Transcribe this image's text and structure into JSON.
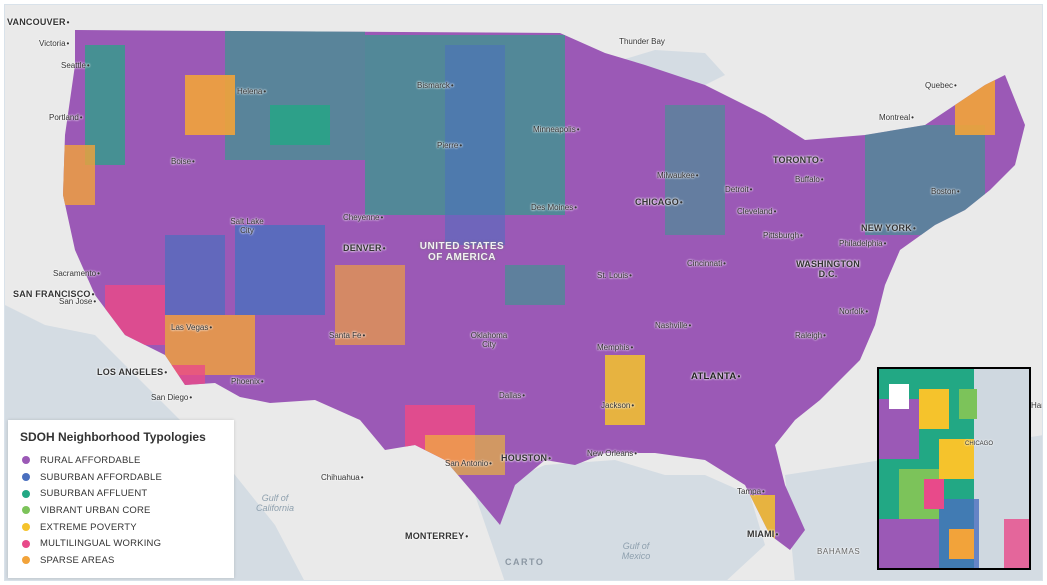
{
  "legend": {
    "title": "SDOH Neighborhood Typologies",
    "items": [
      {
        "label": "RURAL AFFORDABLE",
        "color": "#9b59b6"
      },
      {
        "label": "SUBURBAN AFFORDABLE",
        "color": "#4a6fbf"
      },
      {
        "label": "SUBURBAN AFFLUENT",
        "color": "#22a884"
      },
      {
        "label": "VIBRANT URBAN CORE",
        "color": "#7cc35a"
      },
      {
        "label": "EXTREME POVERTY",
        "color": "#f5c32c"
      },
      {
        "label": "MULTILINGUAL WORKING",
        "color": "#e84a8a"
      },
      {
        "label": "SPARSE AREAS",
        "color": "#f2a33a"
      }
    ]
  },
  "attribution": "CARTO",
  "country_label": "UNITED STATES OF AMERICA",
  "inset_label": "CHICAGO",
  "water_labels": [
    {
      "text": "Gulf of California"
    },
    {
      "text": "Gulf of Mexico"
    }
  ],
  "cities": [
    {
      "name": "VANCOUVER"
    },
    {
      "name": "Victoria"
    },
    {
      "name": "Seattle"
    },
    {
      "name": "Portland"
    },
    {
      "name": "Helena"
    },
    {
      "name": "Boise"
    },
    {
      "name": "Bismarck"
    },
    {
      "name": "Pierre"
    },
    {
      "name": "Thunder Bay"
    },
    {
      "name": "Minneapolis"
    },
    {
      "name": "Quebec"
    },
    {
      "name": "Montreal"
    },
    {
      "name": "TORONTO"
    },
    {
      "name": "Milwaukee"
    },
    {
      "name": "Detroit"
    },
    {
      "name": "Buffalo"
    },
    {
      "name": "Boston"
    },
    {
      "name": "CHICAGO"
    },
    {
      "name": "Cleveland"
    },
    {
      "name": "Des Moines"
    },
    {
      "name": "Cheyenne"
    },
    {
      "name": "Salt Lake City"
    },
    {
      "name": "DENVER"
    },
    {
      "name": "NEW YORK"
    },
    {
      "name": "Pittsburgh"
    },
    {
      "name": "Philadelphia"
    },
    {
      "name": "WASHINGTON D.C."
    },
    {
      "name": "Cincinnati"
    },
    {
      "name": "St. Louis"
    },
    {
      "name": "Sacramento"
    },
    {
      "name": "SAN FRANCISCO"
    },
    {
      "name": "San Jose"
    },
    {
      "name": "Las Vegas"
    },
    {
      "name": "Santa Fe"
    },
    {
      "name": "Oklahoma City"
    },
    {
      "name": "Nashville"
    },
    {
      "name": "Norfolk"
    },
    {
      "name": "Raleigh"
    },
    {
      "name": "Memphis"
    },
    {
      "name": "LOS ANGELES"
    },
    {
      "name": "ATLANTA"
    },
    {
      "name": "Phoenix"
    },
    {
      "name": "San Diego"
    },
    {
      "name": "Dallas"
    },
    {
      "name": "Jackson"
    },
    {
      "name": "Chihuahua"
    },
    {
      "name": "San Antonio"
    },
    {
      "name": "HOUSTON"
    },
    {
      "name": "New Orleans"
    },
    {
      "name": "Tampa"
    },
    {
      "name": "MIAMI"
    },
    {
      "name": "MONTERREY"
    },
    {
      "name": "BAHAMAS"
    },
    {
      "name": "Ham"
    }
  ]
}
